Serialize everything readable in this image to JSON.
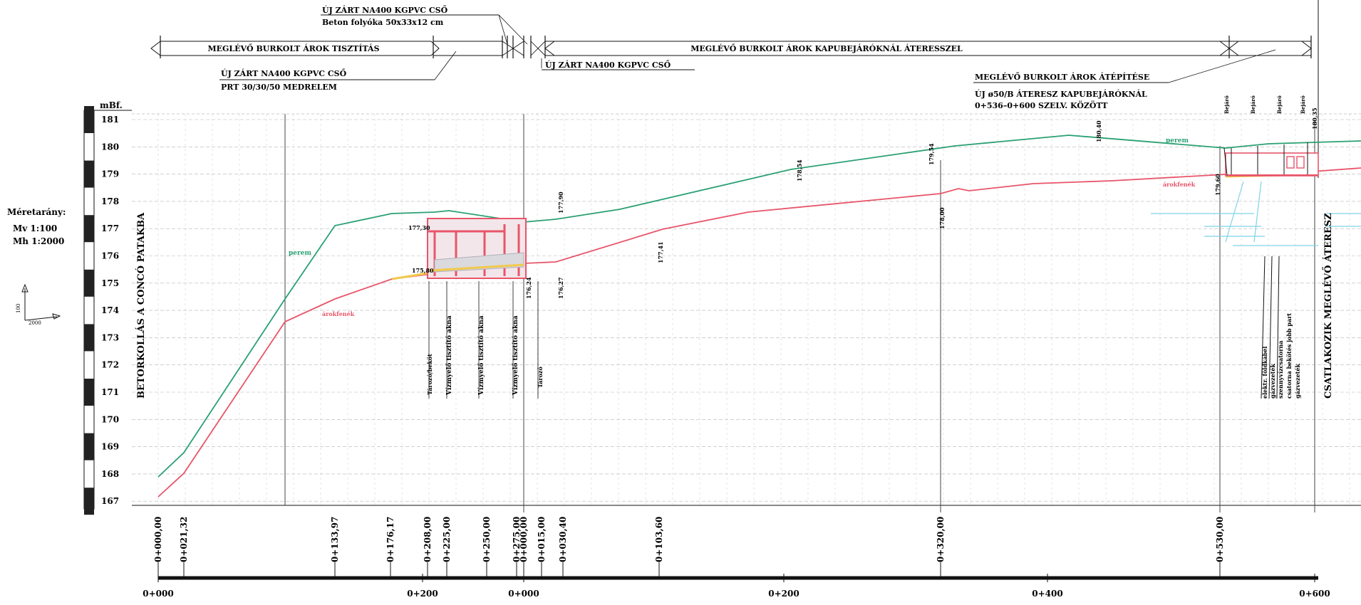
{
  "scale": {
    "title": "Méretarány:",
    "mv": "Mv  1:100",
    "mh": "Mh  1:2000",
    "arrow_v": "100",
    "arrow_h": "2000"
  },
  "axis": {
    "unit": "mBf.",
    "levels": [
      "181",
      "180",
      "179",
      "178",
      "177",
      "176",
      "175",
      "174",
      "173",
      "172",
      "171",
      "170",
      "169",
      "168",
      "167"
    ]
  },
  "annotations": {
    "top_pipe_1": "ÚJ ZÁRT NA400 KGPVC CSŐ",
    "top_pipe_1_sub": "Beton folyóka 50x33x12 cm",
    "band_1": "MEGLÉVŐ BURKOLT ÁROK TISZTÍTÁS",
    "band_2": "MEGLÉVŐ BURKOLT ÁROK KAPUBEJÁRÓKNÁL ÁTERESSZEL",
    "pipe_2": "ÚJ ZÁRT NA400 KGPVC CSŐ",
    "pipe_2_sub": "PRT 30/30/50 MEDRELEM",
    "pipe_3": "ÚJ ZÁRT NA400 KGPVC CSŐ",
    "rebuild": "MEGLÉVŐ BURKOLT ÁROK ÁTÉPÍTÉSE",
    "culvert": "ÚJ ø50/B ÁTERESZ KAPUBEJÁRÓKNÁL",
    "culvert_range": "0+536–0+600 SZELV. KÖZÖTT",
    "left_vertical": "BETORKOLLÁS A CONCÓ PATAKBA",
    "right_vertical": "CSATLAKOZIK MEGLÉVŐ ÁTERESZ",
    "label_perem": "perem",
    "label_kozepvonal": "árokfenék",
    "label_perem_right": "perem",
    "label_kozepvonal_right": "árokfenék"
  },
  "structures": [
    "Tározó/beköt",
    "Vízmyelő tisztító akna",
    "Vízmyelő tisztító akna",
    "Vízmyelő tisztító akna",
    "Tározó"
  ],
  "right_labels": [
    "Bejáró",
    "Bejáró",
    "Bejáró",
    "Bejáró"
  ],
  "right_utilities": [
    "elektr. földkábel",
    "gázvezeték",
    "szennyvízcsatorna",
    "csatorna bekötés jobb part",
    "gázvezeték"
  ],
  "elevations": {
    "e1": "177,30",
    "e2": "175,80",
    "e3": "176,24",
    "e4": "176,27",
    "e5": "177,90",
    "e6": "177,41",
    "e7": "178,54",
    "e8": "179,54",
    "e9": "178,00",
    "e10": "180,40",
    "e11": "179,60",
    "e12": "180,35"
  },
  "stations": [
    "0+000,00",
    "0+021,32",
    "0+133,97",
    "0+176,17",
    "0+208,00",
    "0+225,00",
    "0+250,00",
    "0+275,00",
    "0+000,00",
    "0+015,00",
    "0+030,40",
    "0+103,60",
    "0+320,00",
    "0+530,00"
  ],
  "scale_labels": [
    "0+000",
    "0+200",
    "0+000",
    "0+200",
    "0+400",
    "0+600"
  ],
  "colors": {
    "perem": "#2aa073",
    "bottom": "#e8556a",
    "yellow": "#f2c94c",
    "cyan": "#7fd3e6"
  }
}
